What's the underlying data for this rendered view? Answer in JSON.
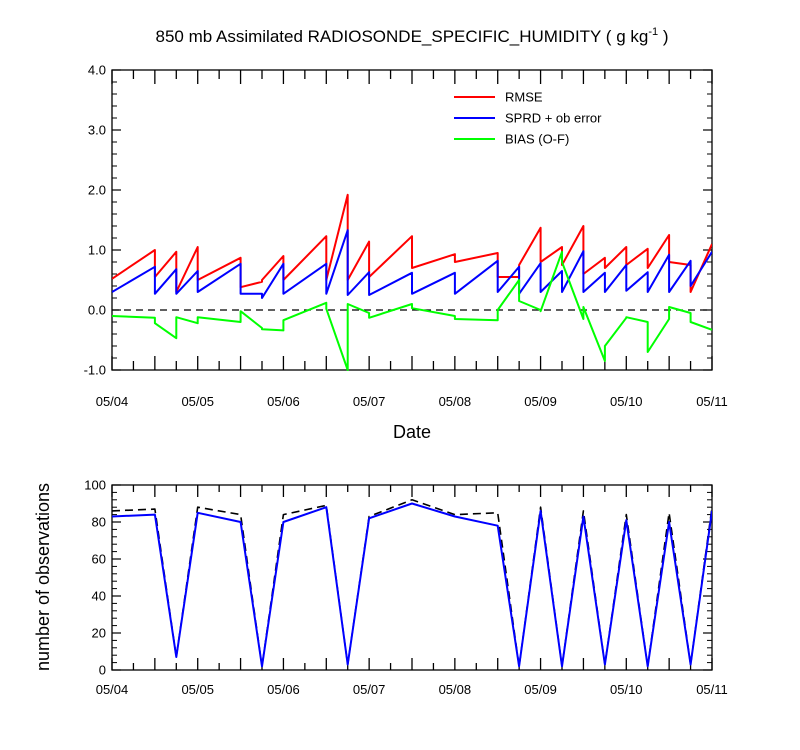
{
  "chart_data": [
    {
      "type": "line",
      "title": "850 mb Assimilated RADIOSONDE_SPECIFIC_HUMIDITY ( g kg",
      "title_sup": "-1",
      "title_end": " )",
      "xlabel": "Date",
      "ylabel": "",
      "xlim": [
        0,
        7
      ],
      "ylim": [
        -1.0,
        4.0
      ],
      "ytick_labels": [
        "-1.0",
        "0.0",
        "1.0",
        "2.0",
        "3.0",
        "4.0"
      ],
      "xtick_labels": [
        "05/04",
        "05/05",
        "05/06",
        "05/07",
        "05/08",
        "05/09",
        "05/10",
        "05/11"
      ],
      "x_units": "days since 05/04 00Z",
      "legend_position": "top-right",
      "zero_line": "dashed",
      "series": [
        {
          "name": "RMSE",
          "color": "#ff0000",
          "x": [
            0,
            0.5,
            0.5,
            0.75,
            0.75,
            1.0,
            1.0,
            1.5,
            1.5,
            1.75,
            1.75,
            2.0,
            2.0,
            2.5,
            2.5,
            2.75,
            2.75,
            3.0,
            3.0,
            3.5,
            3.5,
            4.0,
            4.0,
            4.5,
            4.5,
            4.75,
            4.75,
            5.0,
            5.0,
            5.25,
            5.25,
            5.5,
            5.5,
            5.75,
            5.75,
            6.0,
            6.0,
            6.25,
            6.25,
            6.5,
            6.5,
            6.75,
            6.75,
            7.0
          ],
          "y": [
            0.52,
            1.0,
            0.55,
            0.97,
            0.3,
            1.05,
            0.5,
            0.87,
            0.38,
            0.47,
            0.5,
            0.9,
            0.5,
            1.23,
            0.5,
            1.92,
            0.5,
            1.14,
            0.55,
            1.23,
            0.7,
            0.93,
            0.8,
            0.95,
            0.55,
            0.55,
            0.75,
            1.37,
            0.8,
            1.05,
            0.75,
            1.4,
            0.6,
            0.87,
            0.7,
            1.05,
            0.75,
            1.02,
            0.7,
            1.25,
            0.8,
            0.75,
            0.3,
            1.1
          ]
        },
        {
          "name": "SPRD + ob error",
          "color": "#0000ff",
          "x": [
            0,
            0.5,
            0.5,
            0.75,
            0.75,
            1.0,
            1.0,
            1.5,
            1.5,
            1.75,
            1.75,
            2.0,
            2.0,
            2.5,
            2.5,
            2.75,
            2.75,
            3.0,
            3.0,
            3.5,
            3.5,
            4.0,
            4.0,
            4.5,
            4.5,
            4.75,
            4.75,
            5.0,
            5.0,
            5.25,
            5.25,
            5.5,
            5.5,
            5.75,
            5.75,
            6.0,
            6.0,
            6.25,
            6.25,
            6.5,
            6.5,
            6.75,
            6.75,
            7.0
          ],
          "y": [
            0.3,
            0.72,
            0.27,
            0.68,
            0.27,
            0.65,
            0.3,
            0.77,
            0.27,
            0.27,
            0.2,
            0.77,
            0.27,
            0.77,
            0.27,
            1.33,
            0.25,
            0.63,
            0.25,
            0.62,
            0.27,
            0.62,
            0.27,
            0.82,
            0.3,
            0.72,
            0.27,
            0.78,
            0.3,
            0.65,
            0.3,
            0.98,
            0.3,
            0.62,
            0.3,
            0.75,
            0.32,
            0.63,
            0.3,
            0.92,
            0.3,
            0.82,
            0.4,
            0.97
          ]
        },
        {
          "name": "BIAS (O-F)",
          "color": "#00ff00",
          "x": [
            0,
            0.5,
            0.5,
            0.75,
            0.75,
            1.0,
            1.0,
            1.5,
            1.5,
            1.75,
            1.75,
            2.0,
            2.0,
            2.5,
            2.5,
            2.75,
            2.75,
            3.0,
            3.0,
            3.5,
            3.5,
            4.0,
            4.0,
            4.5,
            4.5,
            4.75,
            4.75,
            5.0,
            5.0,
            5.25,
            5.25,
            5.5,
            5.5,
            5.75,
            5.75,
            6.0,
            6.0,
            6.25,
            6.25,
            6.5,
            6.5,
            6.75,
            6.75,
            7.0
          ],
          "y": [
            -0.1,
            -0.13,
            -0.22,
            -0.47,
            -0.12,
            -0.22,
            -0.12,
            -0.2,
            -0.02,
            -0.3,
            -0.32,
            -0.34,
            -0.17,
            0.12,
            0.02,
            -1.0,
            0.1,
            -0.05,
            -0.13,
            0.1,
            0.03,
            -0.1,
            -0.15,
            -0.17,
            0.0,
            0.5,
            0.15,
            0.0,
            -0.02,
            0.97,
            0.8,
            -0.15,
            0.05,
            -0.85,
            -0.6,
            -0.13,
            -0.12,
            -0.2,
            -0.7,
            -0.15,
            0.05,
            -0.05,
            -0.2,
            -0.33
          ]
        }
      ]
    },
    {
      "type": "line",
      "title": "",
      "xlabel": "",
      "ylabel": "number of observations",
      "xlim": [
        0,
        7
      ],
      "ylim": [
        0,
        100
      ],
      "ytick_labels": [
        "0",
        "20",
        "40",
        "60",
        "80",
        "100"
      ],
      "xtick_labels": [
        "05/04",
        "05/05",
        "05/06",
        "05/07",
        "05/08",
        "05/09",
        "05/10",
        "05/11"
      ],
      "x_units": "days since 05/04 00Z",
      "series": [
        {
          "style": "dashed",
          "color": "#000000",
          "x": [
            0,
            0.5,
            0.75,
            1.0,
            1.5,
            1.75,
            2.0,
            2.5,
            2.75,
            3.0,
            3.5,
            4.0,
            4.5,
            4.75,
            5.0,
            5.25,
            5.5,
            5.75,
            6.0,
            6.25,
            6.5,
            6.75,
            7.0
          ],
          "y": [
            86,
            87,
            7,
            88,
            84,
            2,
            84,
            89,
            3,
            83,
            92,
            84,
            85,
            2,
            88,
            2,
            86,
            3,
            84,
            2,
            85,
            3,
            88
          ]
        },
        {
          "style": "solid",
          "color": "#0000ff",
          "x": [
            0,
            0.5,
            0.75,
            1.0,
            1.5,
            1.75,
            2.0,
            2.5,
            2.75,
            3.0,
            3.5,
            4.0,
            4.5,
            4.75,
            5.0,
            5.25,
            5.5,
            5.75,
            6.0,
            6.25,
            6.5,
            6.75,
            7.0
          ],
          "y": [
            83,
            84,
            7,
            85,
            80,
            2,
            80,
            88,
            3,
            82,
            90,
            83,
            78,
            2,
            86,
            2,
            83,
            3,
            81,
            2,
            80,
            3,
            86
          ]
        }
      ]
    }
  ]
}
